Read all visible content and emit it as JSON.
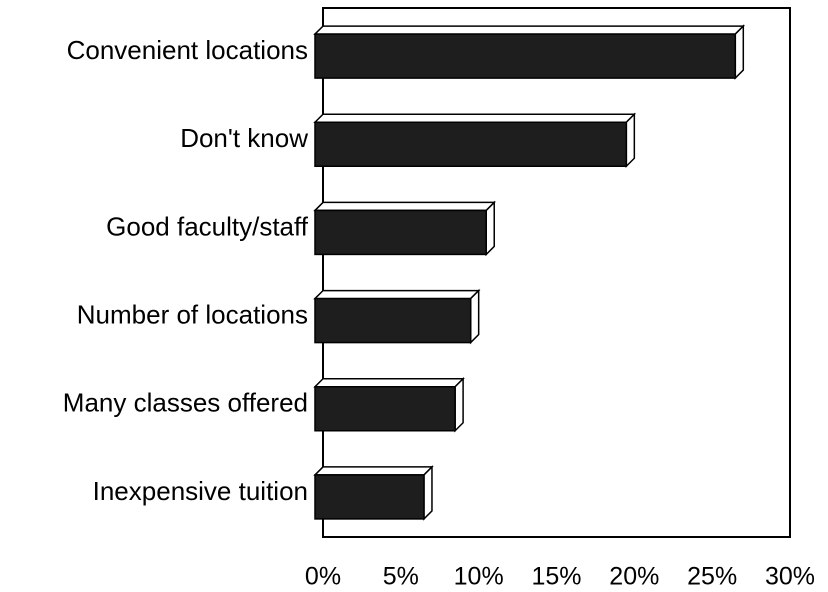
{
  "chart_data": {
    "type": "bar",
    "orientation": "horizontal",
    "categories": [
      "Convenient locations",
      "Don't know",
      "Good faculty/staff",
      "Number of locations",
      "Many classes offered",
      "Inexpensive tuition"
    ],
    "values": [
      27,
      20,
      11,
      10,
      9,
      7
    ],
    "color": "#1e1e1e",
    "xlim": [
      0,
      30
    ],
    "xticks": [
      {
        "value": 0,
        "label": "0%"
      },
      {
        "value": 5,
        "label": "5%"
      },
      {
        "value": 10,
        "label": "10%"
      },
      {
        "value": 15,
        "label": "15%"
      },
      {
        "value": 20,
        "label": "20%"
      },
      {
        "value": 25,
        "label": "25%"
      },
      {
        "value": 30,
        "label": "30%"
      }
    ]
  }
}
